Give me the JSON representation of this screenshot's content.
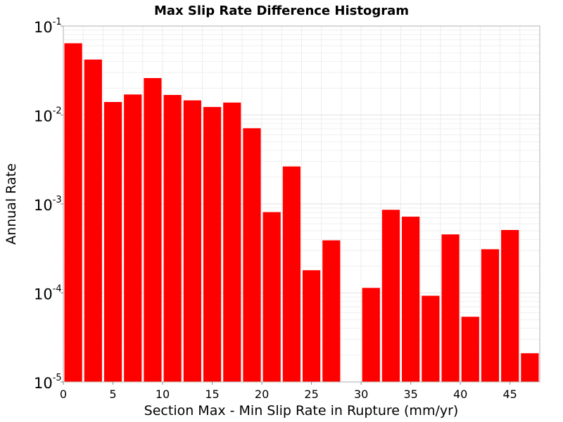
{
  "chart_data": {
    "type": "bar",
    "title": "Max Slip Rate Difference Histogram",
    "xlabel": "Section Max - Min Slip Rate in Rupture (mm/yr)",
    "ylabel": "Annual Rate",
    "y_scale": "log",
    "xlim": [
      0,
      48
    ],
    "ylim": [
      1e-05,
      0.1
    ],
    "bin_width": 2,
    "grid": true,
    "legend": "none",
    "bar_color": "#ff0000",
    "x_ticks": [
      "0",
      "5",
      "10",
      "15",
      "20",
      "25",
      "30",
      "35",
      "40",
      "45"
    ],
    "y_ticks": [
      {
        "base": "10",
        "exp": "-1",
        "value": 0.1
      },
      {
        "base": "10",
        "exp": "-2",
        "value": 0.01
      },
      {
        "base": "10",
        "exp": "-3",
        "value": 0.001
      },
      {
        "base": "10",
        "exp": "-4",
        "value": 0.0001
      },
      {
        "base": "10",
        "exp": "-5",
        "value": 1e-05
      }
    ],
    "bins": [
      {
        "x": 1,
        "value": 0.064
      },
      {
        "x": 3,
        "value": 0.042
      },
      {
        "x": 5,
        "value": 0.014
      },
      {
        "x": 7,
        "value": 0.017
      },
      {
        "x": 9,
        "value": 0.026
      },
      {
        "x": 11,
        "value": 0.0168
      },
      {
        "x": 13,
        "value": 0.0146
      },
      {
        "x": 15,
        "value": 0.0123
      },
      {
        "x": 17,
        "value": 0.0138
      },
      {
        "x": 19,
        "value": 0.0071
      },
      {
        "x": 21,
        "value": 0.00081
      },
      {
        "x": 23,
        "value": 0.00264
      },
      {
        "x": 25,
        "value": 0.00018
      },
      {
        "x": 27,
        "value": 0.00039
      },
      {
        "x": 29,
        "value": 0
      },
      {
        "x": 31,
        "value": 0.000114
      },
      {
        "x": 33,
        "value": 0.00086
      },
      {
        "x": 35,
        "value": 0.00072
      },
      {
        "x": 37,
        "value": 9.3e-05
      },
      {
        "x": 39,
        "value": 0.000455
      },
      {
        "x": 41,
        "value": 5.4e-05
      },
      {
        "x": 43,
        "value": 0.00031
      },
      {
        "x": 45,
        "value": 0.00051
      },
      {
        "x": 47,
        "value": 2.1e-05
      }
    ]
  }
}
